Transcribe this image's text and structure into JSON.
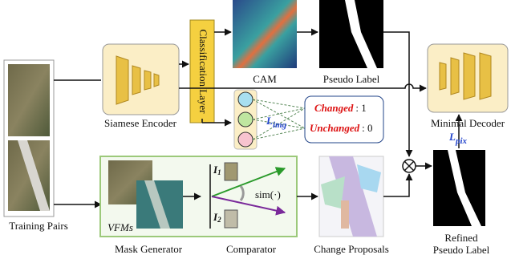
{
  "inputs": {
    "label": "Training Pairs"
  },
  "encoder": {
    "label": "Siamese Encoder"
  },
  "classifier": {
    "label": "Classification Layer"
  },
  "cam": {
    "label": "CAM"
  },
  "pseudo_label": {
    "label": "Pseudo Label"
  },
  "loss_img": {
    "symbol": "L",
    "subscript": "img"
  },
  "classes": {
    "changed": {
      "name": "Changed",
      "value": ": 1"
    },
    "unchanged": {
      "name": "Unchanged",
      "value": ": 0"
    }
  },
  "decoder": {
    "label": "Minimal Decoder"
  },
  "loss_pix": {
    "symbol": "L",
    "subscript": "pix"
  },
  "refined": {
    "lines": [
      "Refined",
      "Pseudo Label"
    ]
  },
  "vfm": {
    "tag": "VFMs",
    "mask_generator": "Mask Generator",
    "comparator": "Comparator",
    "image1": {
      "symbol": "I",
      "subscript": "1"
    },
    "image2": {
      "symbol": "I",
      "subscript": "2"
    },
    "similarity": "sim(·)"
  },
  "proposals": {
    "label": "Change Proposals"
  }
}
